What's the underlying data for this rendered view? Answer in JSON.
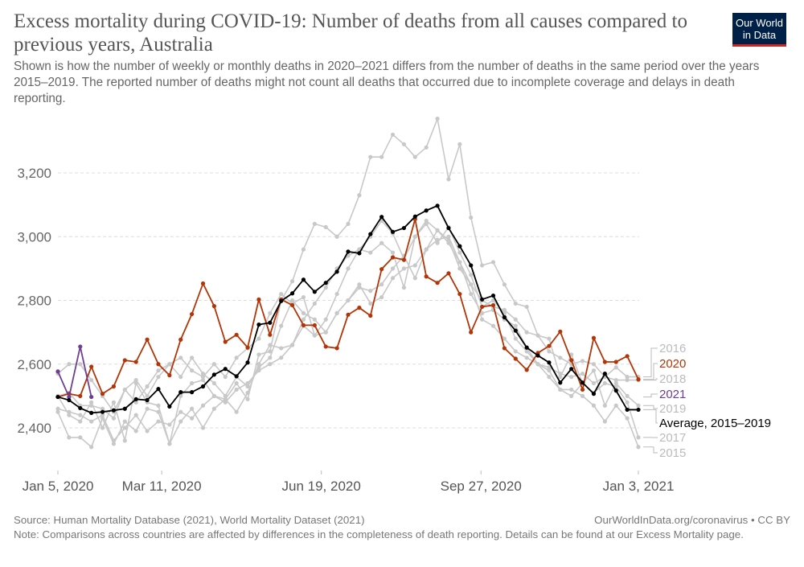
{
  "header": {
    "title": "Excess mortality during COVID-19: Number of deaths from all causes compared to previous years, Australia",
    "subtitle": "Shown is how the number of weekly or monthly deaths in 2020–2021 differs from the number of deaths in the same period over the years 2015–2019. The reported number of deaths might not count all deaths that occurred due to incomplete coverage and delays in death reporting.",
    "logo_line1": "Our World",
    "logo_line2": "in Data"
  },
  "footer": {
    "source": "Source: Human Mortality Database (2021), World Mortality Dataset (2021)",
    "url": "OurWorldInData.org/coronavirus • CC BY",
    "note": "Note: Comparisons across countries are affected by differences in the completeness of death reporting. Details can be found at our Excess Mortality page."
  },
  "chart_data": {
    "type": "line",
    "title": "Excess mortality during COVID-19: Number of deaths from all causes compared to previous years, Australia",
    "xlabel": "",
    "ylabel": "",
    "x_ticks": [
      "Jan 5, 2020",
      "Mar 11, 2020",
      "Jun 19, 2020",
      "Sep 27, 2020",
      "Jan 3, 2021"
    ],
    "x_tick_weeks": [
      0,
      9.3,
      23.6,
      37.9,
      52
    ],
    "x_unit": "week index from Jan 5, 2020",
    "y_ticks": [
      2400,
      2600,
      2800,
      3000,
      3200
    ],
    "y_tick_labels": [
      "2,400",
      "2,600",
      "2,800",
      "3,000",
      "3,200"
    ],
    "ylim": [
      2260,
      3400
    ],
    "xlim": [
      0,
      52
    ],
    "grid": "horizontal-dashed",
    "legend_placement": "right",
    "series": [
      {
        "name": "2015",
        "color": "#c8c8c8",
        "label_color": "#bbbbbb",
        "style": "gray",
        "values": [
          2450,
          2370,
          2370,
          2340,
          2430,
          2350,
          2420,
          2390,
          2460,
          2450,
          2350,
          2420,
          2460,
          2400,
          2460,
          2490,
          2450,
          2510,
          2600,
          2660,
          2650,
          2660,
          2720,
          2690,
          2700,
          2760,
          2800,
          2840,
          2830,
          2850,
          2900,
          2940,
          2870,
          2960,
          2990,
          3000,
          2920,
          2820,
          2760,
          2770,
          2740,
          2720,
          2650,
          2600,
          2560,
          2520,
          2520,
          2500,
          2470,
          2420,
          2470,
          2430,
          2340
        ]
      },
      {
        "name": "2016",
        "color": "#c8c8c8",
        "label_color": "#bbbbbb",
        "style": "gray",
        "values": [
          2570,
          2600,
          2600,
          2550,
          2500,
          2450,
          2520,
          2480,
          2530,
          2580,
          2600,
          2560,
          2620,
          2570,
          2540,
          2500,
          2560,
          2530,
          2590,
          2620,
          2720,
          2800,
          2760,
          2740,
          2700,
          2760,
          2800,
          2850,
          2790,
          2810,
          2870,
          2900,
          2910,
          2960,
          3020,
          2990,
          2900,
          2850,
          2800,
          2780,
          2770,
          2740,
          2700,
          2690,
          2640,
          2620,
          2600,
          2610,
          2600,
          2560,
          2590,
          2560,
          2560
        ]
      },
      {
        "name": "2017",
        "color": "#c8c8c8",
        "label_color": "#bbbbbb",
        "style": "gray",
        "values": [
          2460,
          2450,
          2440,
          2420,
          2440,
          2360,
          2400,
          2440,
          2390,
          2420,
          2410,
          2450,
          2430,
          2470,
          2500,
          2480,
          2520,
          2540,
          2580,
          2600,
          2620,
          2660,
          2740,
          2790,
          2840,
          2900,
          2940,
          2960,
          3000,
          3050,
          3010,
          2930,
          3000,
          3050,
          3020,
          2980,
          2920,
          2850,
          2740,
          2720,
          2680,
          2640,
          2620,
          2600,
          2580,
          2520,
          2500,
          2540,
          2510,
          2540,
          2530,
          2480,
          2370
        ]
      },
      {
        "name": "2018",
        "color": "#c8c8c8",
        "label_color": "#bbbbbb",
        "style": "gray",
        "values": [
          2500,
          2510,
          2470,
          2470,
          2460,
          2430,
          2520,
          2550,
          2500,
          2560,
          2600,
          2620,
          2580,
          2560,
          2600,
          2560,
          2620,
          2650,
          2680,
          2760,
          2820,
          2790,
          2810,
          2690,
          2740,
          2820,
          2900,
          2960,
          2950,
          2980,
          2950,
          2840,
          3000,
          3040,
          2980,
          3030,
          2950,
          2880,
          2780,
          2800,
          2760,
          2680,
          2640,
          2600,
          2590,
          2570,
          2560,
          2570,
          2540,
          2560,
          2550,
          2550,
          2550
        ]
      },
      {
        "name": "2019",
        "color": "#c8c8c8",
        "label_color": "#bbbbbb",
        "style": "gray",
        "values": [
          2500,
          2440,
          2420,
          2480,
          2400,
          2480,
          2360,
          2540,
          2480,
          2470,
          2350,
          2500,
          2540,
          2550,
          2500,
          2490,
          2540,
          2490,
          2630,
          2640,
          2800,
          2860,
          2960,
          3040,
          3030,
          3000,
          3040,
          3130,
          3250,
          3250,
          3320,
          3290,
          3250,
          3280,
          3370,
          3180,
          3290,
          3060,
          2910,
          2920,
          2850,
          2790,
          2780,
          2690,
          2680,
          2560,
          2630,
          2540,
          2580,
          2470,
          2540,
          2500,
          2470
        ]
      },
      {
        "name": "2020",
        "color": "#b13507",
        "label_color": "#b13507",
        "style": "highlight",
        "values": [
          2497,
          2507,
          2500,
          2592,
          2507,
          2530,
          2612,
          2607,
          2677,
          2600,
          2565,
          2677,
          2757,
          2853,
          2782,
          2670,
          2692,
          2652,
          2803,
          2692,
          2803,
          2785,
          2722,
          2722,
          2655,
          2650,
          2755,
          2777,
          2752,
          2898,
          2935,
          2927,
          3055,
          2875,
          2855,
          2885,
          2820,
          2700,
          2780,
          2785,
          2650,
          2617,
          2582,
          2635,
          2657,
          2702,
          2612,
          2520,
          2682,
          2607,
          2607,
          2625,
          2552
        ]
      },
      {
        "name": "2021",
        "color": "#6d3e91",
        "label_color": "#6d3e91",
        "style": "highlight",
        "values": [
          2577,
          2497,
          2655,
          2497
        ]
      },
      {
        "name": "Average, 2015–2019",
        "color": "#000000",
        "label_color": "#000000",
        "style": "average",
        "values": [
          2497,
          2487,
          2462,
          2447,
          2450,
          2455,
          2460,
          2490,
          2487,
          2522,
          2467,
          2512,
          2512,
          2530,
          2567,
          2585,
          2562,
          2605,
          2724,
          2730,
          2798,
          2822,
          2865,
          2827,
          2855,
          2890,
          2953,
          2948,
          3008,
          3062,
          3015,
          3027,
          3063,
          3082,
          3097,
          3027,
          2970,
          2910,
          2803,
          2815,
          2747,
          2705,
          2652,
          2627,
          2605,
          2542,
          2585,
          2542,
          2507,
          2570,
          2517,
          2457,
          2457
        ]
      }
    ],
    "legend_order": [
      "2016",
      "2020",
      "2018",
      "2021",
      "2019",
      "Average, 2015–2019",
      "2017",
      "2015"
    ]
  }
}
